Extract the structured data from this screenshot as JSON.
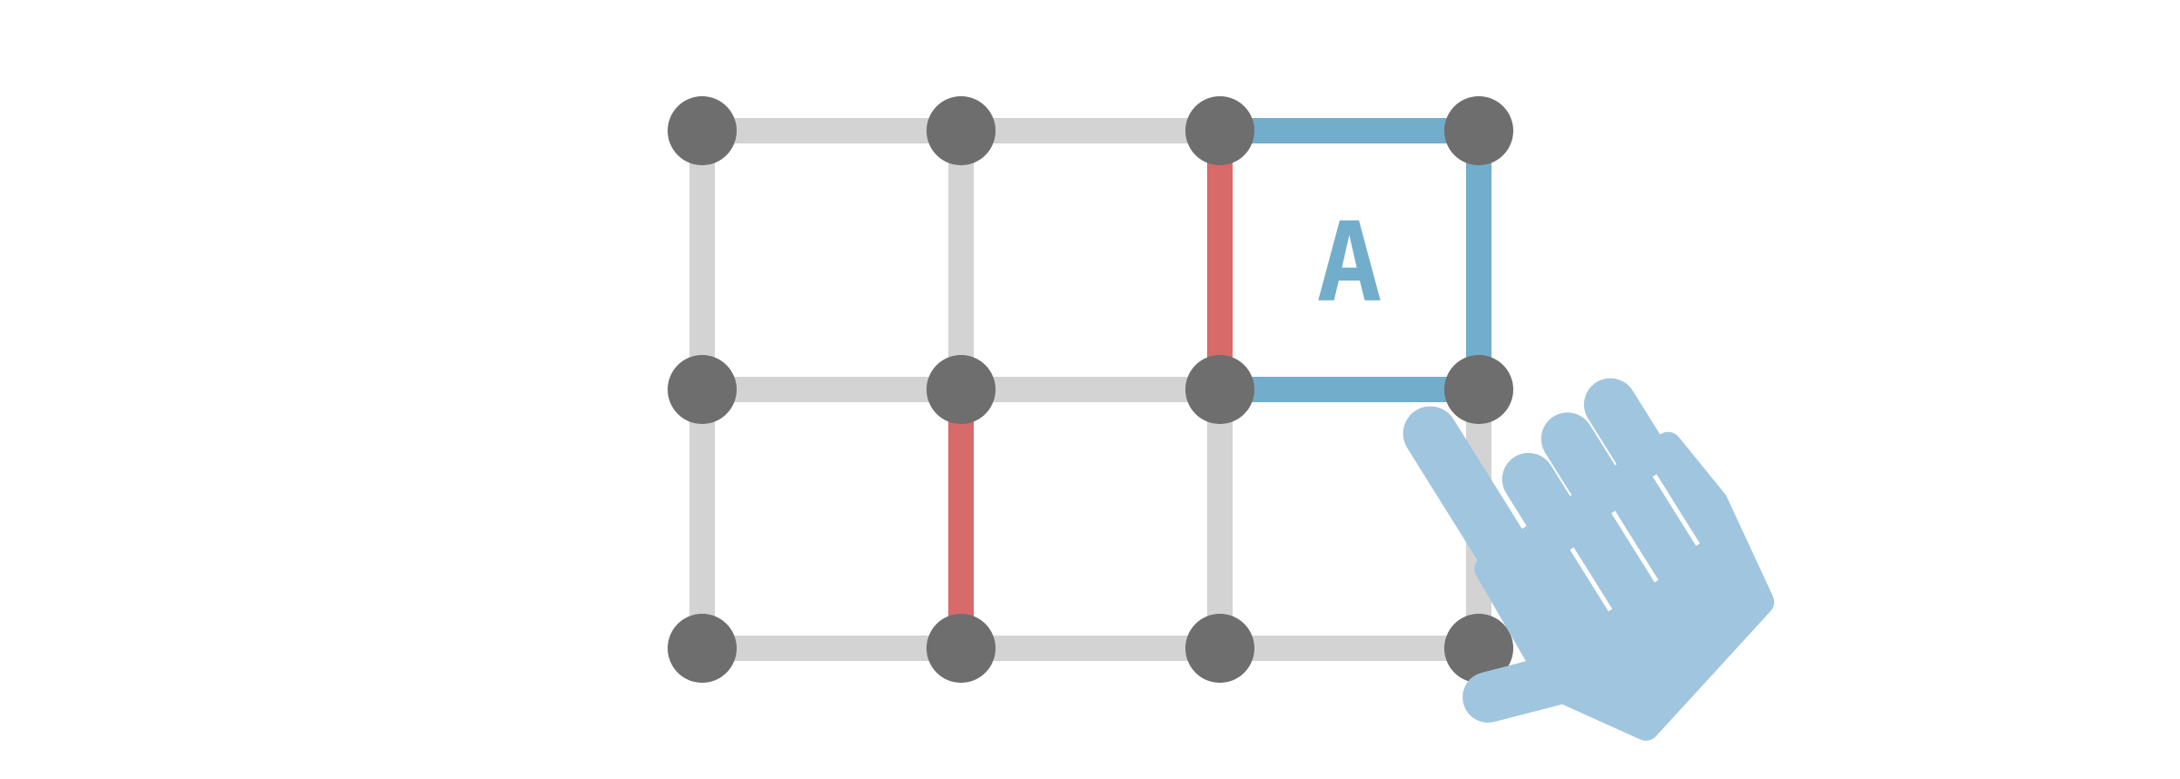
{
  "board": {
    "rows": 3,
    "cols": 4,
    "colors": {
      "background": "#ffffff",
      "node": "#6e6e6e",
      "edge_default": "#d3d3d3",
      "edge_red": "#d86a6a",
      "edge_blue": "#72adcc",
      "hand": "#a0c5de"
    },
    "edges": [
      {
        "id": "h-0-0",
        "kind": "h",
        "row": 0,
        "col": 0,
        "state": "default"
      },
      {
        "id": "h-0-1",
        "kind": "h",
        "row": 0,
        "col": 1,
        "state": "default"
      },
      {
        "id": "h-0-2",
        "kind": "h",
        "row": 0,
        "col": 2,
        "state": "blue"
      },
      {
        "id": "h-1-0",
        "kind": "h",
        "row": 1,
        "col": 0,
        "state": "default"
      },
      {
        "id": "h-1-1",
        "kind": "h",
        "row": 1,
        "col": 1,
        "state": "default"
      },
      {
        "id": "h-1-2",
        "kind": "h",
        "row": 1,
        "col": 2,
        "state": "blue"
      },
      {
        "id": "h-2-0",
        "kind": "h",
        "row": 2,
        "col": 0,
        "state": "default"
      },
      {
        "id": "h-2-1",
        "kind": "h",
        "row": 2,
        "col": 1,
        "state": "default"
      },
      {
        "id": "h-2-2",
        "kind": "h",
        "row": 2,
        "col": 2,
        "state": "default"
      },
      {
        "id": "v-0-0",
        "kind": "v",
        "row": 0,
        "col": 0,
        "state": "default"
      },
      {
        "id": "v-0-1",
        "kind": "v",
        "row": 0,
        "col": 1,
        "state": "default"
      },
      {
        "id": "v-0-2",
        "kind": "v",
        "row": 0,
        "col": 2,
        "state": "red"
      },
      {
        "id": "v-0-3",
        "kind": "v",
        "row": 0,
        "col": 3,
        "state": "blue"
      },
      {
        "id": "v-1-0",
        "kind": "v",
        "row": 1,
        "col": 0,
        "state": "default"
      },
      {
        "id": "v-1-1",
        "kind": "v",
        "row": 1,
        "col": 1,
        "state": "red"
      },
      {
        "id": "v-1-2",
        "kind": "v",
        "row": 1,
        "col": 2,
        "state": "default"
      },
      {
        "id": "v-1-3",
        "kind": "v",
        "row": 1,
        "col": 3,
        "state": "default"
      }
    ],
    "boxes": [
      {
        "row": 0,
        "col": 2,
        "owner_label": "A",
        "color": "blue"
      }
    ]
  },
  "pointer": {
    "icon": "pointing-hand-icon",
    "color": "#a0c5de"
  }
}
